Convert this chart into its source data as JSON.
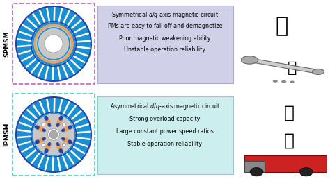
{
  "background_color": "#ffffff",
  "top_box": {
    "label": "SPMSM",
    "border_color": "#bb66bb",
    "text_lines_normal": [
      "PMs are easy to fall off and demagnetize",
      "Poor magnetic weakening ability",
      "Unstable operation reliability"
    ],
    "text_line_italic": "Symmetrical $d$/$q$-axis magnetic circuit",
    "box_color": "#d0d0e8"
  },
  "bottom_box": {
    "label": "IPMSM",
    "border_color": "#44cccc",
    "text_lines_normal": [
      "Strong overload capacity",
      "Large constant power speed ratios",
      "Stable operation reliability"
    ],
    "text_line_italic": "Asymmetrical $d$/$q$-axis magnetic circuit",
    "box_color": "#cceeee"
  },
  "spmsm_colors": {
    "stator_outer": "#1a8fd1",
    "stator_inner": "#1a8fd1",
    "tooth_fill": "#ffffff",
    "tooth_edge": "#1a8fd1",
    "pm_ring": "#e8a060",
    "rotor": "#c8c8c8",
    "rotor_inner_ring": "#2244aa",
    "shaft_white": "#ffffff",
    "outer_ring_line": "#2244aa"
  },
  "ipmsm_colors": {
    "stator_outer": "#1a8fd1",
    "tooth_fill": "#ffffff",
    "tooth_edge": "#1a8fd1",
    "rotor": "#c8c8c8",
    "magnet_orange": "#e8a060",
    "barrier_blue": "#2244aa",
    "shaft_white": "#ffffff",
    "hole_grey": "#aaaaaa",
    "outer_ring_line": "#2244aa"
  }
}
